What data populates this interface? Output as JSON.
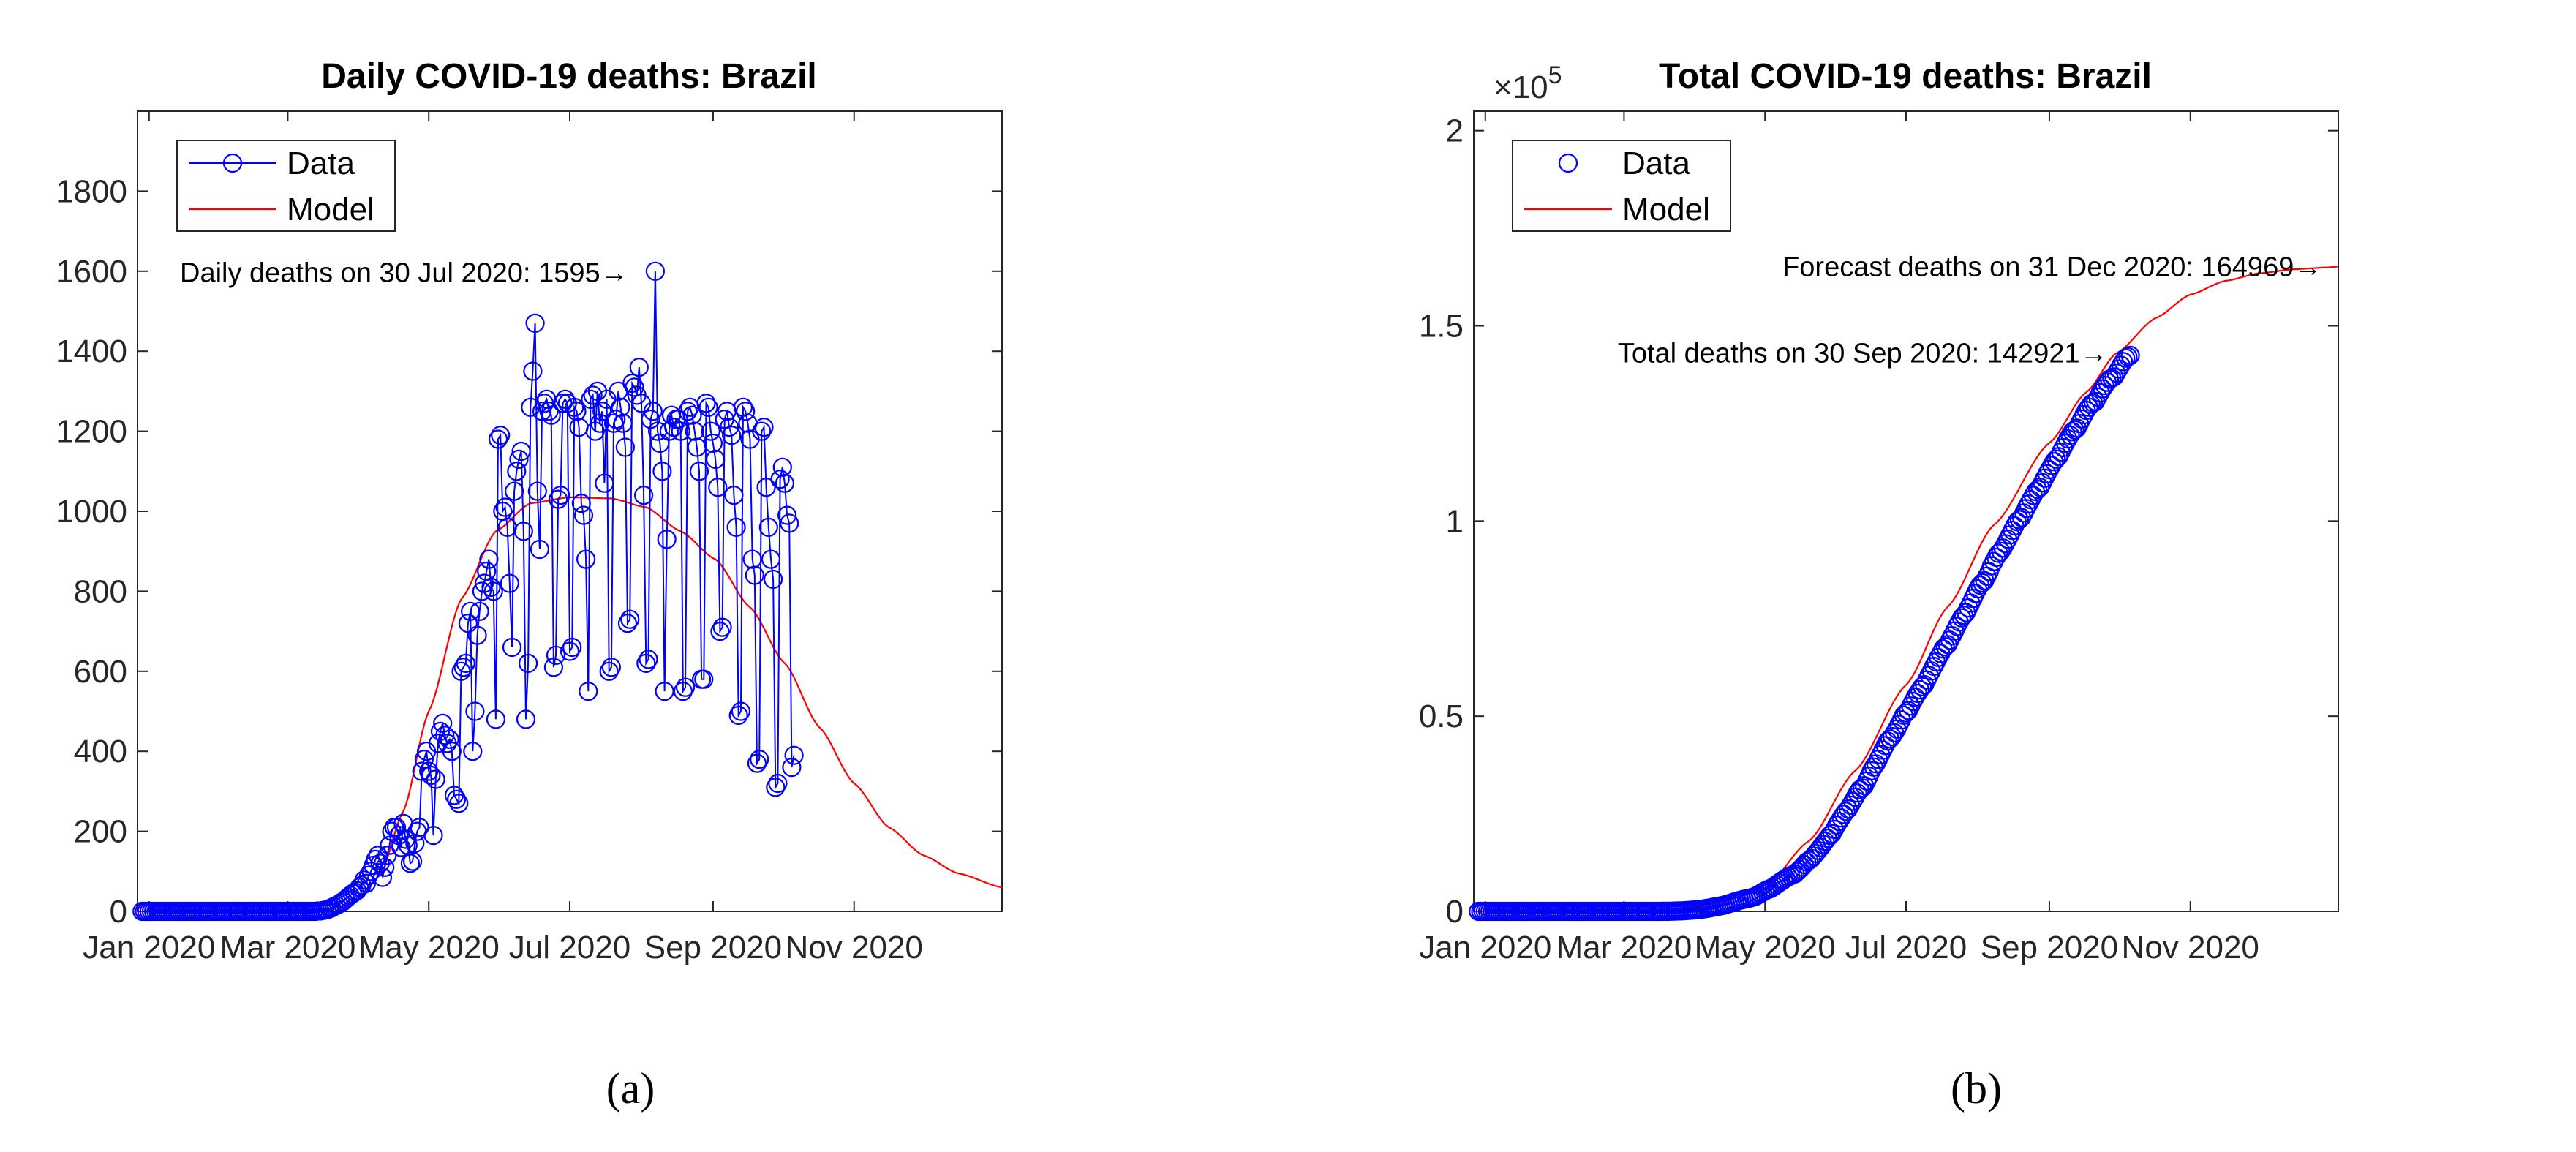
{
  "chart_data": [
    {
      "type": "line",
      "title": "Daily COVID-19 deaths: Brazil",
      "xlabel": "",
      "ylabel": "",
      "x_unit": "days since 2020-01-01",
      "xlim": [
        -5,
        369
      ],
      "ylim": [
        0,
        2000
      ],
      "x_ticks": [
        {
          "value": 0,
          "label": "Jan 2020"
        },
        {
          "value": 60,
          "label": "Mar 2020"
        },
        {
          "value": 121,
          "label": "May 2020"
        },
        {
          "value": 182,
          "label": "Jul 2020"
        },
        {
          "value": 244,
          "label": "Sep 2020"
        },
        {
          "value": 305,
          "label": "Nov 2020"
        }
      ],
      "y_ticks": [
        {
          "value": 0,
          "label": "0"
        },
        {
          "value": 200,
          "label": "200"
        },
        {
          "value": 400,
          "label": "400"
        },
        {
          "value": 600,
          "label": "600"
        },
        {
          "value": 800,
          "label": "800"
        },
        {
          "value": 1000,
          "label": "1000"
        },
        {
          "value": 1200,
          "label": "1200"
        },
        {
          "value": 1400,
          "label": "1400"
        },
        {
          "value": 1600,
          "label": "1600"
        },
        {
          "value": 1800,
          "label": "1800"
        }
      ],
      "legend": {
        "position": "top-left",
        "entries": [
          "Data",
          "Model"
        ]
      },
      "annotation": {
        "text": "Daily deaths on 30 Jul 2020: 1595→",
        "x": 211,
        "y": 1595
      },
      "series": [
        {
          "name": "Data",
          "style": "line-with-circles",
          "color": "#0000ff",
          "x_start": -3,
          "values": [
            0,
            0,
            0,
            0,
            0,
            0,
            0,
            0,
            0,
            0,
            0,
            0,
            0,
            0,
            0,
            0,
            0,
            0,
            0,
            0,
            0,
            0,
            0,
            0,
            0,
            0,
            0,
            0,
            0,
            0,
            0,
            0,
            0,
            0,
            0,
            0,
            0,
            0,
            0,
            0,
            0,
            0,
            0,
            0,
            0,
            0,
            0,
            0,
            0,
            0,
            0,
            0,
            0,
            0,
            0,
            0,
            0,
            0,
            0,
            0,
            0,
            0,
            0,
            0,
            0,
            0,
            0,
            0,
            0,
            0,
            0,
            0,
            0,
            0,
            0,
            0,
            1,
            1,
            2,
            3,
            4,
            7,
            9,
            12,
            15,
            18,
            22,
            25,
            30,
            35,
            40,
            44,
            48,
            52,
            60,
            65,
            78,
            70,
            90,
            100,
            115,
            130,
            140,
            120,
            85,
            110,
            140,
            165,
            200,
            210,
            210,
            190,
            160,
            220,
            180,
            165,
            120,
            125,
            170,
            200,
            210,
            350,
            380,
            400,
            350,
            340,
            190,
            330,
            420,
            450,
            470,
            440,
            420,
            430,
            400,
            290,
            280,
            270,
            600,
            610,
            620,
            720,
            750,
            400,
            500,
            690,
            750,
            800,
            820,
            850,
            880,
            810,
            800,
            480,
            1180,
            1190,
            1000,
            1010,
            960,
            820,
            660,
            1050,
            1100,
            1130,
            1150,
            950,
            480,
            620,
            1260,
            1350,
            1470,
            1050,
            905,
            1250,
            1270,
            1280,
            1250,
            1240,
            610,
            640,
            1030,
            1040,
            1270,
            1280,
            1270,
            650,
            660,
            1260,
            1250,
            1210,
            1020,
            990,
            880,
            550,
            1280,
            1290,
            1200,
            1300,
            1220,
            1250,
            1070,
            1280,
            600,
            610,
            1220,
            1230,
            1300,
            1260,
            1220,
            1160,
            720,
            730,
            1320,
            1310,
            1290,
            1360,
            1270,
            1040,
            620,
            630,
            1230,
            1250,
            1600,
            1200,
            1170,
            1100,
            550,
            930,
            1200,
            1240,
            1210,
            1230,
            1230,
            1200,
            550,
            560,
            1250,
            1260,
            1240,
            1200,
            1160,
            1100,
            580,
            580,
            1270,
            1260,
            1200,
            1170,
            1130,
            1060,
            700,
            710,
            1230,
            1250,
            1210,
            1190,
            1040,
            960,
            490,
            500,
            1260,
            1250,
            1220,
            1180,
            880,
            840,
            370,
            380,
            1200,
            1210,
            1060,
            960,
            880,
            830,
            310,
            320,
            1080,
            1110,
            1070,
            990,
            970,
            360,
            390
          ],
          "display_note": "Data ends on day 273 (30 Sep 2020)"
        },
        {
          "name": "Model",
          "style": "line",
          "color": "#ff0000",
          "model_knots": [
            [
              -3,
              0
            ],
            [
              75,
              0
            ],
            [
              88,
              20
            ],
            [
              100,
              90
            ],
            [
              110,
              250
            ],
            [
              121,
              500
            ],
            [
              135,
              780
            ],
            [
              150,
              950
            ],
            [
              165,
              1020
            ],
            [
              182,
              1035
            ],
            [
              200,
              1032
            ],
            [
              215,
              1010
            ],
            [
              230,
              950
            ],
            [
              245,
              880
            ],
            [
              260,
              760
            ],
            [
              275,
              620
            ],
            [
              290,
              460
            ],
            [
              305,
              320
            ],
            [
              320,
              210
            ],
            [
              335,
              140
            ],
            [
              350,
              95
            ],
            [
              369,
              60
            ]
          ]
        }
      ]
    },
    {
      "type": "line",
      "title": "Total COVID-19 deaths: Brazil",
      "xlabel": "",
      "ylabel": "",
      "x_unit": "days since 2020-01-01",
      "xlim": [
        -5,
        369
      ],
      "ylim": [
        0,
        2.05
      ],
      "y_exponent_label": "×10",
      "y_exponent_power": "5",
      "x_ticks": [
        {
          "value": 0,
          "label": "Jan 2020"
        },
        {
          "value": 60,
          "label": "Mar 2020"
        },
        {
          "value": 121,
          "label": "May 2020"
        },
        {
          "value": 182,
          "label": "Jul 2020"
        },
        {
          "value": 244,
          "label": "Sep 2020"
        },
        {
          "value": 305,
          "label": "Nov 2020"
        }
      ],
      "y_ticks": [
        {
          "value": 0,
          "label": "0"
        },
        {
          "value": 0.5,
          "label": "0.5"
        },
        {
          "value": 1,
          "label": "1"
        },
        {
          "value": 1.5,
          "label": "1.5"
        },
        {
          "value": 2,
          "label": "2"
        }
      ],
      "legend": {
        "position": "top-left",
        "entries": [
          "Data",
          "Model"
        ]
      },
      "annotations": [
        {
          "text": "Forecast deaths on 31 Dec 2020: 164969→",
          "x": 365,
          "y": 1.64969
        },
        {
          "text": "Total deaths on 30 Sep 2020: 142921→",
          "x": 273,
          "y": 1.42921
        }
      ],
      "series": [
        {
          "name": "Data",
          "style": "circles",
          "color": "#0000ff",
          "x_range": [
            -3,
            273
          ],
          "note": "cumulative sum of daily data"
        },
        {
          "name": "Model",
          "style": "line",
          "color": "#ff0000",
          "model_knots": [
            [
              -3,
              0
            ],
            [
              75,
              0
            ],
            [
              100,
              0.02
            ],
            [
              121,
              0.06
            ],
            [
              140,
              0.18
            ],
            [
              160,
              0.36
            ],
            [
              182,
              0.58
            ],
            [
              200,
              0.78
            ],
            [
              220,
              0.99
            ],
            [
              244,
              1.2
            ],
            [
              260,
              1.33
            ],
            [
              273,
              1.43
            ],
            [
              290,
              1.52
            ],
            [
              305,
              1.58
            ],
            [
              320,
              1.615
            ],
            [
              335,
              1.635
            ],
            [
              350,
              1.645
            ],
            [
              365,
              1.65
            ],
            [
              369,
              1.652
            ]
          ]
        }
      ]
    }
  ],
  "captions": [
    "(a)",
    "(b)"
  ]
}
